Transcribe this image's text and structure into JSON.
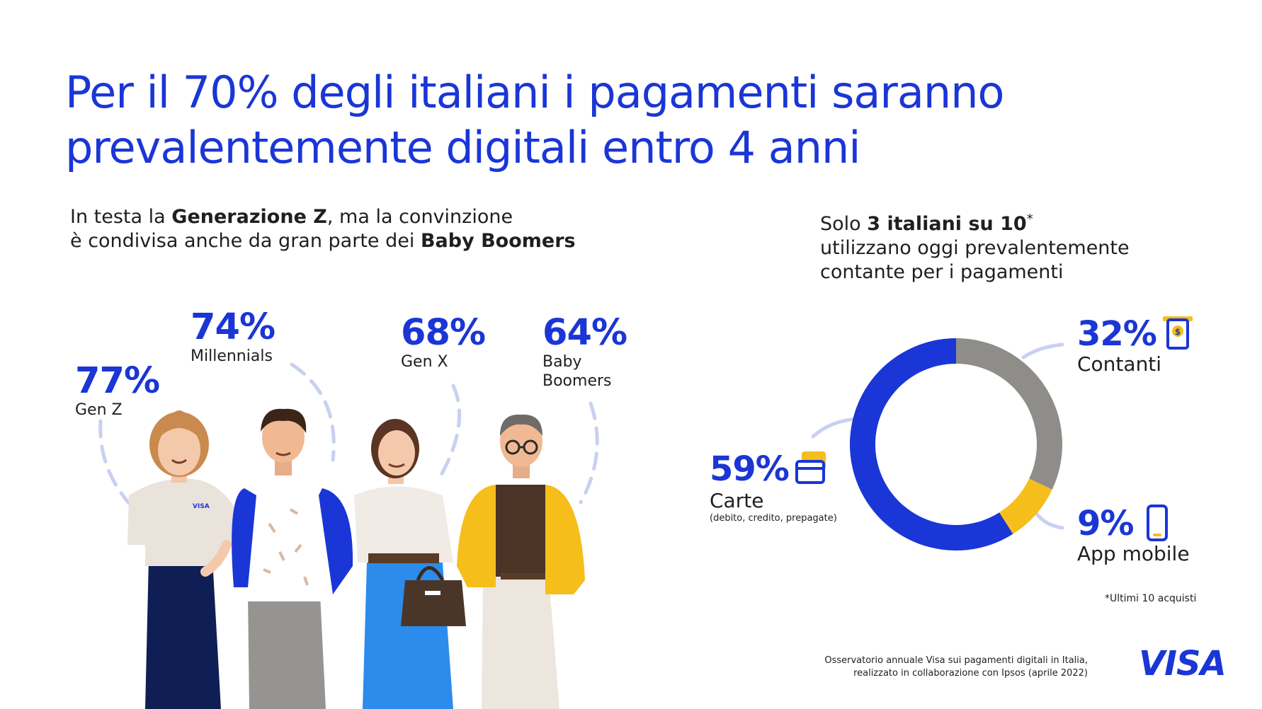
{
  "title": "Per il 70% degli italiani i pagamenti saranno prevalentemente digitali entro 4 anni",
  "left_subtitle": {
    "line1_pre": "In testa la ",
    "line1_bold": "Generazione Z",
    "line1_post": ", ma la convinzione",
    "line2_pre": "è condivisa anche da gran parte dei ",
    "line2_bold": "Baby Boomers"
  },
  "right_subtitle": {
    "line1_pre": "Solo ",
    "line1_bold": "3 italiani su 10",
    "line1_sup": "*",
    "line2": "utilizzano oggi prevalentemente",
    "line3": "contante per i pagamenti"
  },
  "generations": [
    {
      "value": "77%",
      "label": "Gen Z"
    },
    {
      "value": "74%",
      "label": "Millennials"
    },
    {
      "value": "68%",
      "label": "Gen X"
    },
    {
      "value": "64%",
      "label_line1": "Baby",
      "label_line2": "Boomers"
    }
  ],
  "donut_labels": {
    "cash": {
      "value": "32%",
      "label": "Contanti"
    },
    "cards": {
      "value": "59%",
      "label": "Carte",
      "note": "(debito, credito, prepagate)"
    },
    "app": {
      "value": "9%",
      "label": "App mobile"
    }
  },
  "footnote": "*Ultimi 10 acquisti",
  "source_line1": "Osservatorio annuale Visa sui pagamenti digitali in Italia,",
  "source_line2": "realizzato in collaborazione con Ipsos (aprile 2022)",
  "brand": "VISA",
  "shirt_logo": "VISA",
  "colors": {
    "blue": "#1a36d6",
    "grey": "#8f8d8a",
    "yellow": "#f6be1a",
    "dash": "#c9d0f0"
  },
  "chart_data": [
    {
      "type": "pie",
      "title": "",
      "categories": [
        "Contanti",
        "App mobile",
        "Carte"
      ],
      "values": [
        32,
        9,
        59
      ],
      "colors": [
        "#8f8d8a",
        "#f6be1a",
        "#1a36d6"
      ],
      "unit": "%"
    },
    {
      "type": "bar",
      "title": "",
      "categories": [
        "Gen Z",
        "Millennials",
        "Gen X",
        "Baby Boomers"
      ],
      "values": [
        77,
        74,
        68,
        64
      ],
      "unit": "%"
    }
  ]
}
